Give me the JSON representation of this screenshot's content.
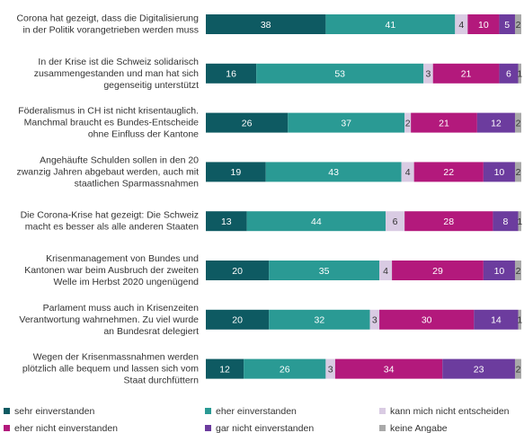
{
  "chart_data": {
    "type": "bar",
    "orientation": "horizontal",
    "stacked": true,
    "categories": [
      "Corona hat gezeigt, dass die Digitalisierung\nin der Politik vorangetrieben werden muss",
      "In der Krise ist die Schweiz solidarisch\nzusammengestanden und man hat sich\ngegenseitig unterstützt",
      "Föderalismus in CH ist nicht krisentauglich.\nManchmal braucht es Bundes-Entscheide\nohne Einfluss der Kantone",
      "Angehäufte Schulden sollen in den 20\nzwanzig Jahren abgebaut werden, auch mit\nstaatlichen Sparmassnahmen",
      "Die Corona-Krise hat gezeigt: Die Schweiz\nmacht es besser als alle anderen Staaten",
      "Krisenmanagement von Bundes und\nKantonen war beim Ausbruch der zweiten\nWelle im Herbst 2020 ungenügend",
      "Parlament muss auch in Krisenzeiten\nVerantwortung wahrnehmen. Zu viel wurde\nan Bundesrat delegiert",
      "Wegen der Krisenmassnahmen werden\nplötzlich alle bequem und lassen sich vom\nStaat durchfüttern"
    ],
    "series": [
      {
        "name": "sehr einverstanden",
        "color": "#0e5a62",
        "label_color": "#ffffff",
        "values": [
          38,
          16,
          26,
          19,
          13,
          20,
          20,
          12
        ]
      },
      {
        "name": "eher einverstanden",
        "color": "#2a9a94",
        "label_color": "#ffffff",
        "values": [
          41,
          53,
          37,
          43,
          44,
          35,
          32,
          26
        ]
      },
      {
        "name": "kann mich nicht entscheiden",
        "color": "#d9cbe3",
        "label_color": "#333333",
        "values": [
          4,
          3,
          2,
          4,
          6,
          4,
          3,
          3
        ]
      },
      {
        "name": "eher nicht einverstanden",
        "color": "#b3197c",
        "label_color": "#ffffff",
        "values": [
          10,
          21,
          21,
          22,
          28,
          29,
          30,
          34
        ]
      },
      {
        "name": "gar nicht einverstanden",
        "color": "#6c3c9e",
        "label_color": "#ffffff",
        "values": [
          5,
          6,
          12,
          10,
          8,
          10,
          14,
          23
        ]
      },
      {
        "name": "keine Angabe",
        "color": "#a9a9a9",
        "label_color": "#333333",
        "values": [
          2,
          1,
          2,
          2,
          1,
          2,
          1,
          2
        ]
      }
    ],
    "xlim": [
      0,
      100
    ]
  }
}
